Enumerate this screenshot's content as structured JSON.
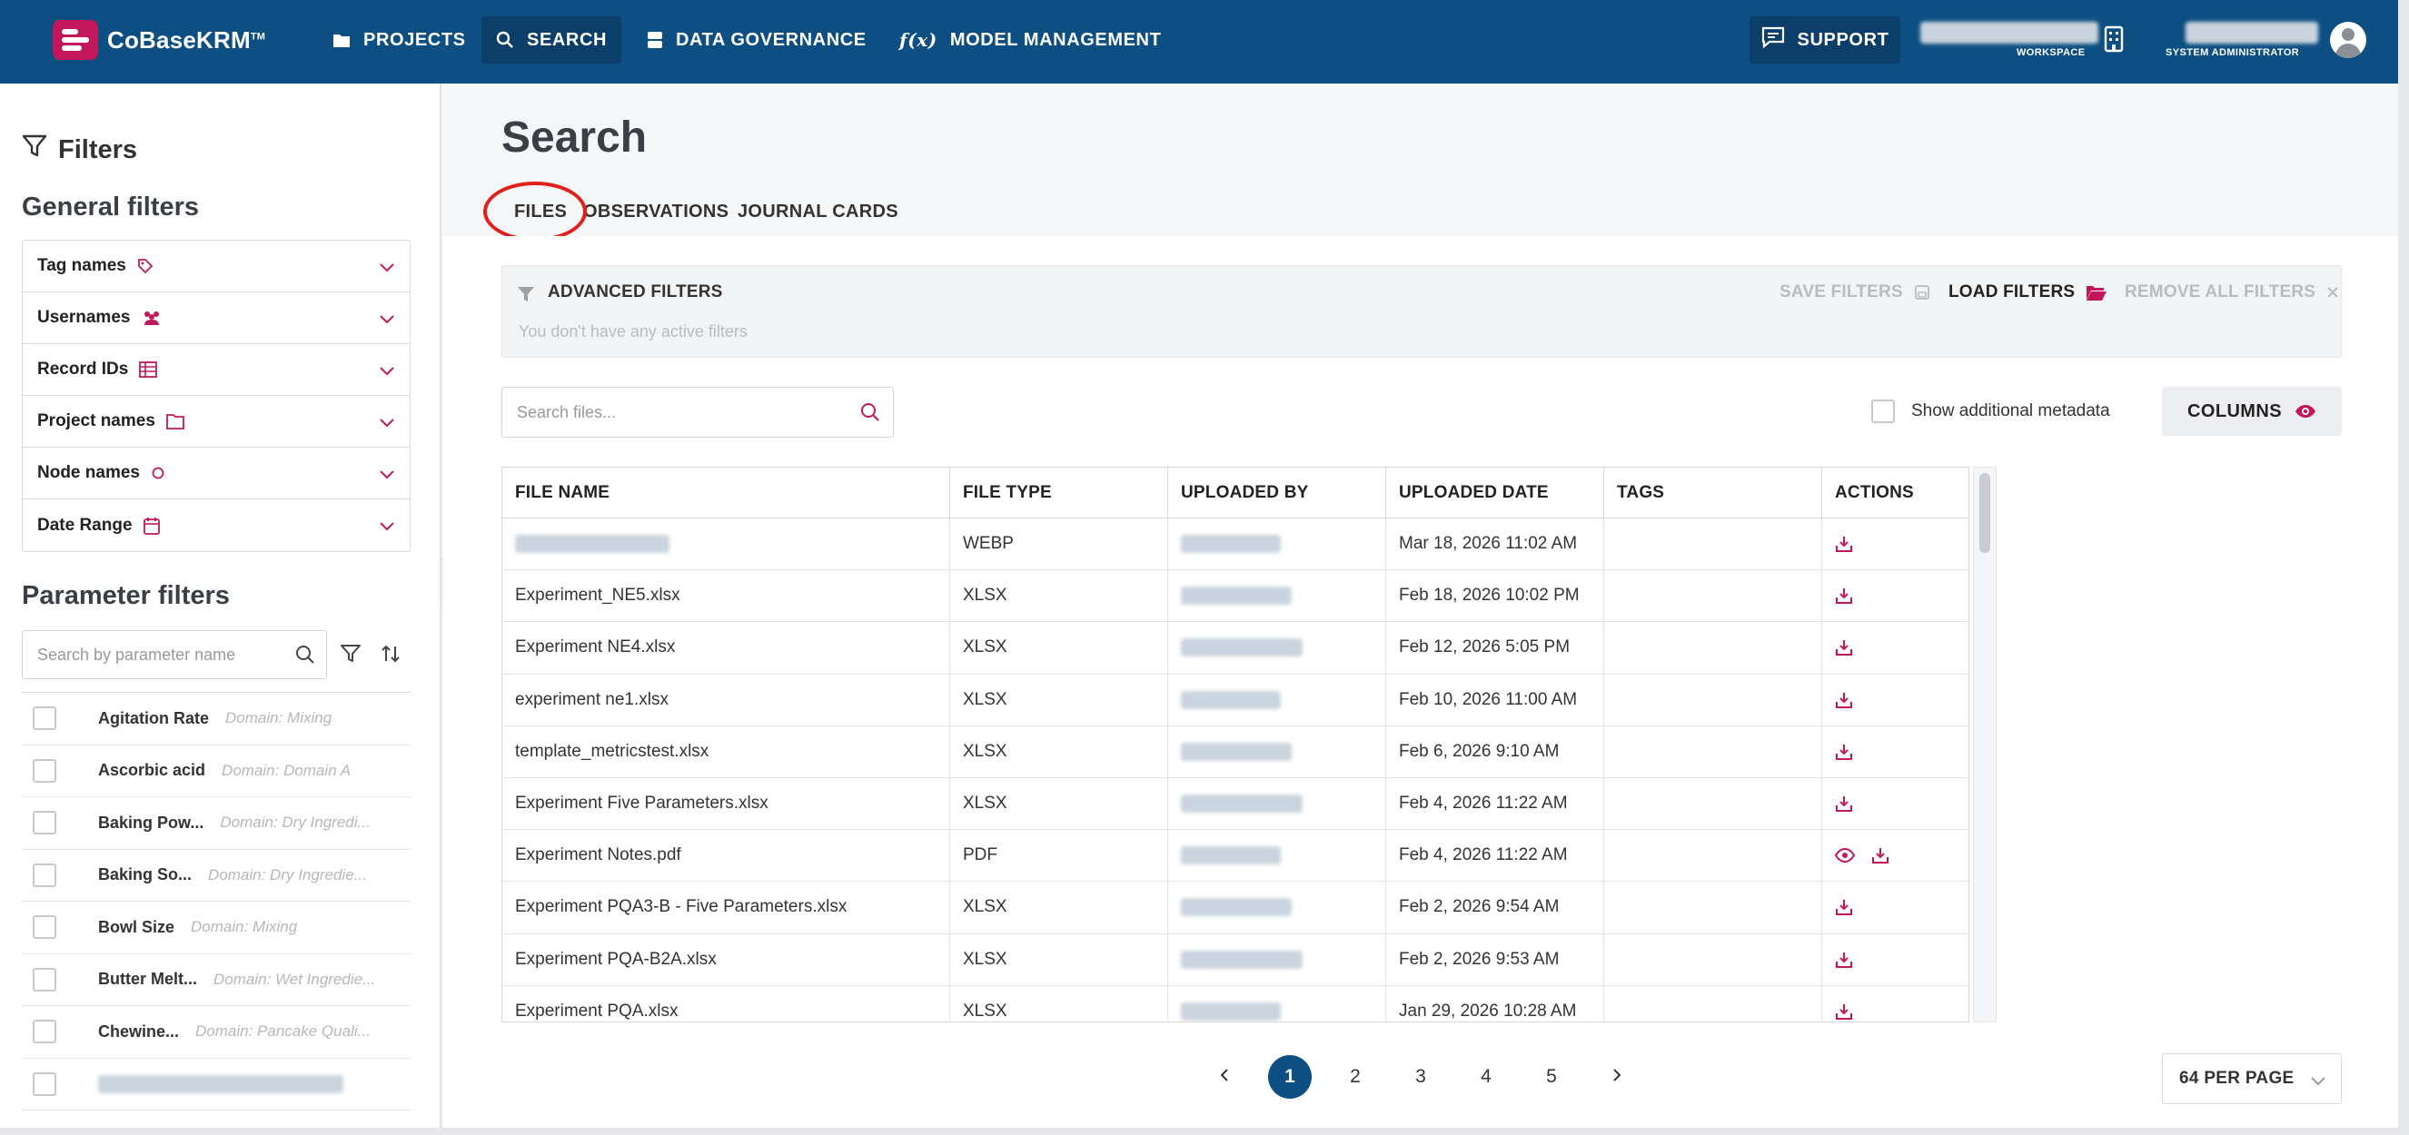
{
  "app": {
    "name": "CoBaseKRM",
    "trademark": "TM"
  },
  "nav": {
    "projects": "PROJECTS",
    "search": "SEARCH",
    "data_governance": "DATA GOVERNANCE",
    "model_management": "MODEL MANAGEMENT",
    "support": "SUPPORT",
    "workspace_label": "WORKSPACE",
    "role_label": "SYSTEM ADMINISTRATOR"
  },
  "sidebar": {
    "title": "Filters",
    "general_title": "General filters",
    "general_filters": [
      {
        "label": "Tag names",
        "icon": "tag-icon"
      },
      {
        "label": "Usernames",
        "icon": "users-icon"
      },
      {
        "label": "Record IDs",
        "icon": "table-icon"
      },
      {
        "label": "Project names",
        "icon": "folder-icon"
      },
      {
        "label": "Node names",
        "icon": "circle-icon"
      },
      {
        "label": "Date Range",
        "icon": "calendar-icon"
      }
    ],
    "parameter_title": "Parameter filters",
    "parameter_search_placeholder": "Search by parameter name",
    "parameters": [
      {
        "name": "Agitation Rate",
        "domain": "Domain: Mixing"
      },
      {
        "name": "Ascorbic acid",
        "domain": "Domain: Domain A"
      },
      {
        "name": "Baking Pow...",
        "domain": "Domain: Dry Ingredi..."
      },
      {
        "name": "Baking So...",
        "domain": "Domain: Dry Ingredie..."
      },
      {
        "name": "Bowl Size",
        "domain": "Domain: Mixing"
      },
      {
        "name": "Butter Melt...",
        "domain": "Domain: Wet Ingredie..."
      },
      {
        "name": "Chewine...",
        "domain": "Domain: Pancake Quali..."
      },
      {
        "name": "",
        "domain": ""
      }
    ]
  },
  "main": {
    "title": "Search",
    "tabs": [
      "FILES",
      "OBSERVATIONS",
      "JOURNAL CARDS"
    ],
    "advanced": {
      "title": "ADVANCED FILTERS",
      "empty": "You don't have any active filters",
      "save": "SAVE FILTERS",
      "load": "LOAD FILTERS",
      "remove": "REMOVE ALL FILTERS"
    },
    "search_placeholder": "Search files...",
    "show_metadata": "Show additional metadata",
    "columns_button": "COLUMNS",
    "table": {
      "headers": [
        "FILE NAME",
        "FILE TYPE",
        "UPLOADED BY",
        "UPLOADED DATE",
        "TAGS",
        "ACTIONS"
      ],
      "rows": [
        {
          "name": "",
          "type": "WEBP",
          "date": "Mar 18, 2026 11:02 AM",
          "view": false
        },
        {
          "name": "Experiment_NE5.xlsx",
          "type": "XLSX",
          "date": "Feb 18, 2026 10:02 PM",
          "view": false
        },
        {
          "name": "Experiment NE4.xlsx",
          "type": "XLSX",
          "date": "Feb 12, 2026 5:05 PM",
          "view": false
        },
        {
          "name": "experiment ne1.xlsx",
          "type": "XLSX",
          "date": "Feb 10, 2026 11:00 AM",
          "view": false
        },
        {
          "name": "template_metricstest.xlsx",
          "type": "XLSX",
          "date": "Feb 6, 2026 9:10 AM",
          "view": false
        },
        {
          "name": "Experiment Five Parameters.xlsx",
          "type": "XLSX",
          "date": "Feb 4, 2026 11:22 AM",
          "view": false
        },
        {
          "name": "Experiment Notes.pdf",
          "type": "PDF",
          "date": "Feb 4, 2026 11:22 AM",
          "view": true
        },
        {
          "name": "Experiment PQA3-B - Five Parameters.xlsx",
          "type": "XLSX",
          "date": "Feb 2, 2026 9:54 AM",
          "view": false
        },
        {
          "name": "Experiment PQA-B2A.xlsx",
          "type": "XLSX",
          "date": "Feb 2, 2026 9:53 AM",
          "view": false
        },
        {
          "name": "Experiment PQA.xlsx",
          "type": "XLSX",
          "date": "Jan 29, 2026 10:28 AM",
          "view": false
        }
      ]
    },
    "pagination": {
      "pages": [
        "1",
        "2",
        "3",
        "4",
        "5"
      ],
      "current": "1",
      "per_page": "64 PER PAGE"
    }
  },
  "colors": {
    "nav_bg": "#0d4f82",
    "accent": "#c2185b",
    "highlight": "#e0201b"
  }
}
